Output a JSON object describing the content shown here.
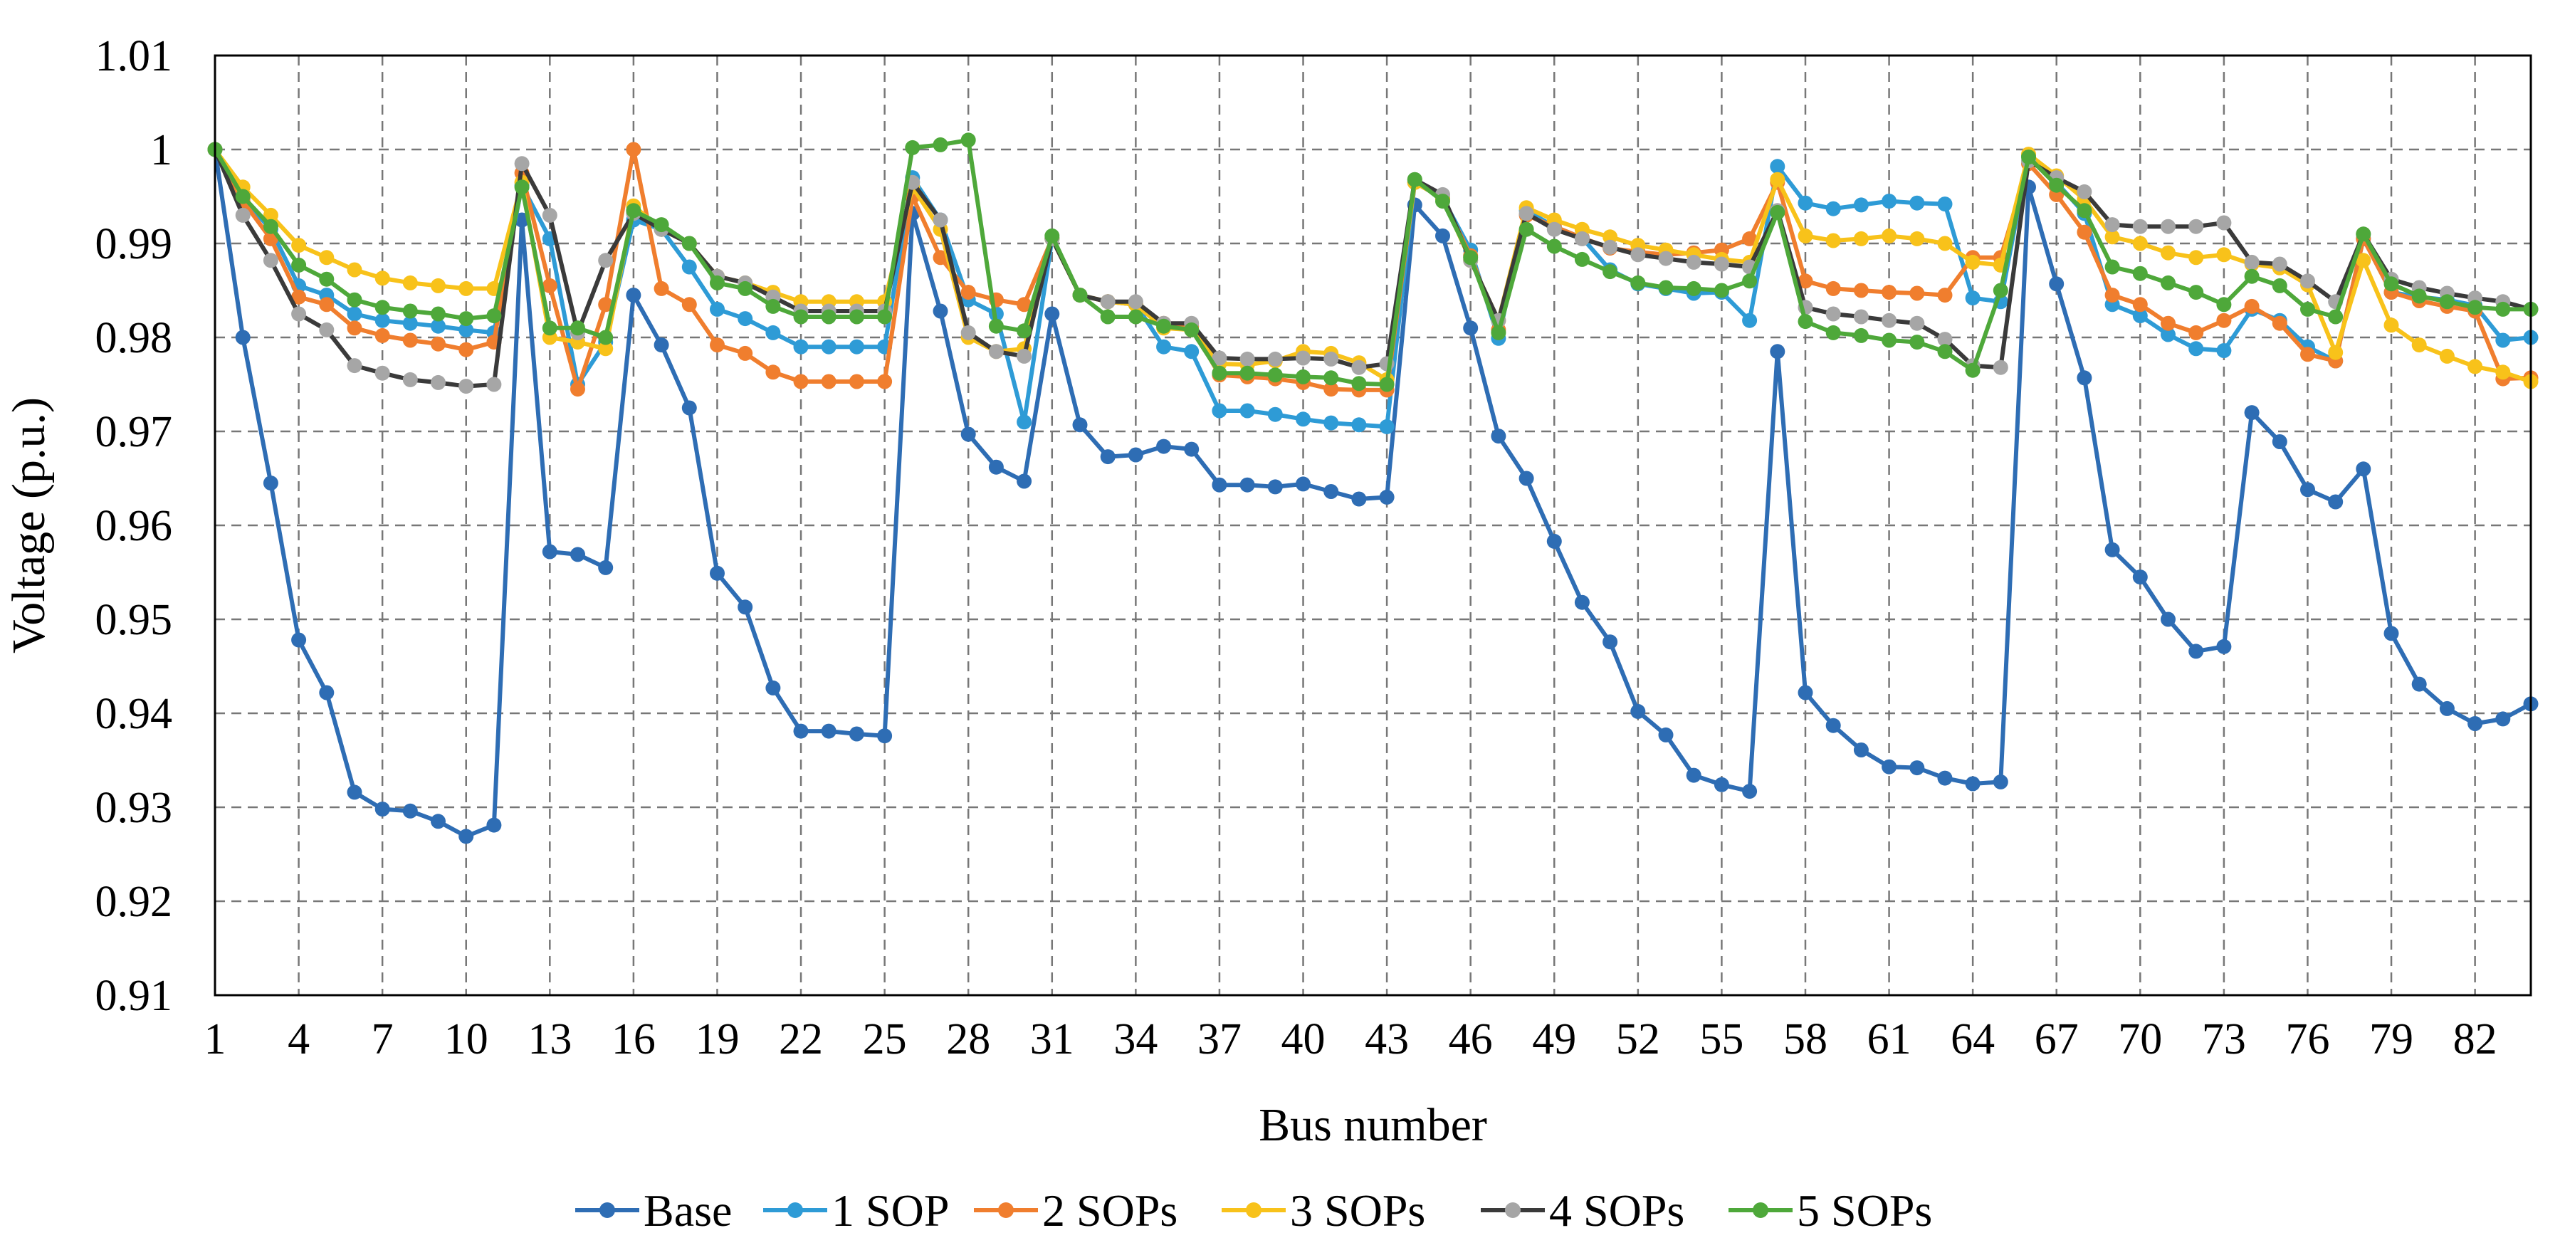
{
  "chart_data": {
    "type": "line",
    "title": "",
    "xlabel": "Bus number",
    "ylabel": "Voltage (p.u.)",
    "xlim": [
      1,
      84
    ],
    "ylim": [
      0.91,
      1.01
    ],
    "grid": true,
    "legend_position": "bottom",
    "x_ticks": [
      1,
      4,
      7,
      10,
      13,
      16,
      19,
      22,
      25,
      28,
      31,
      34,
      37,
      40,
      43,
      46,
      49,
      52,
      55,
      58,
      61,
      64,
      67,
      70,
      73,
      76,
      79,
      82
    ],
    "x_tick_labels": [
      "1",
      "4",
      "7",
      "10",
      "13",
      "16",
      "19",
      "22",
      "25",
      "28",
      "31",
      "34",
      "37",
      "40",
      "43",
      "46",
      "49",
      "52",
      "55",
      "58",
      "61",
      "64",
      "67",
      "70",
      "73",
      "76",
      "79",
      "82"
    ],
    "y_ticks": [
      0.91,
      0.92,
      0.93,
      0.94,
      0.95,
      0.96,
      0.97,
      0.98,
      0.99,
      1.0,
      1.01
    ],
    "y_tick_labels": [
      "0.91",
      "0.92",
      "0.93",
      "0.94",
      "0.95",
      "0.96",
      "0.97",
      "0.98",
      "0.99",
      "1",
      "1.01"
    ],
    "x": [
      1,
      2,
      3,
      4,
      5,
      6,
      7,
      8,
      9,
      10,
      11,
      12,
      13,
      14,
      15,
      16,
      17,
      18,
      19,
      20,
      21,
      22,
      23,
      24,
      25,
      26,
      27,
      28,
      29,
      30,
      31,
      32,
      33,
      34,
      35,
      36,
      37,
      38,
      39,
      40,
      41,
      42,
      43,
      44,
      45,
      46,
      47,
      48,
      49,
      50,
      51,
      52,
      53,
      54,
      55,
      56,
      57,
      58,
      59,
      60,
      61,
      62,
      63,
      64,
      65,
      66,
      67,
      68,
      69,
      70,
      71,
      72,
      73,
      74,
      75,
      76,
      77,
      78,
      79,
      80,
      81,
      82,
      83,
      84
    ],
    "series": [
      {
        "name": "Base",
        "color": "#2e6db4",
        "values": [
          1.0,
          0.98,
          0.9645,
          0.9478,
          0.9422,
          0.9316,
          0.9298,
          0.9296,
          0.9285,
          0.9269,
          0.9281,
          0.9925,
          0.9572,
          0.9569,
          0.9555,
          0.9845,
          0.9792,
          0.9725,
          0.9549,
          0.9513,
          0.9427,
          0.9381,
          0.9381,
          0.9378,
          0.9376,
          0.9932,
          0.9828,
          0.9697,
          0.9662,
          0.9647,
          0.9825,
          0.9707,
          0.9673,
          0.9675,
          0.9684,
          0.9681,
          0.9643,
          0.9643,
          0.9641,
          0.9644,
          0.9636,
          0.9628,
          0.963,
          0.9941,
          0.9908,
          0.981,
          0.9695,
          0.965,
          0.9583,
          0.9518,
          0.9476,
          0.9402,
          0.9377,
          0.9334,
          0.9324,
          0.9317,
          0.9785,
          0.9422,
          0.9387,
          0.9361,
          0.9343,
          0.9342,
          0.9331,
          0.9325,
          0.9327,
          0.996,
          0.9857,
          0.9757,
          0.9574,
          0.9545,
          0.95,
          0.9466,
          0.9471,
          0.972,
          0.9689,
          0.9638,
          0.9625,
          0.966,
          0.9485,
          0.9431,
          0.9405,
          0.9389,
          0.9394,
          0.941
        ]
      },
      {
        "name": "1 SOP",
        "color": "#2e9bd6",
        "values": [
          1.0,
          0.9948,
          0.9915,
          0.9855,
          0.9845,
          0.9825,
          0.9818,
          0.9815,
          0.9812,
          0.9808,
          0.9805,
          0.9962,
          0.9905,
          0.975,
          0.9795,
          0.9925,
          0.9915,
          0.9875,
          0.983,
          0.982,
          0.9805,
          0.979,
          0.979,
          0.979,
          0.979,
          0.997,
          0.9925,
          0.984,
          0.9825,
          0.971,
          0.9905,
          0.9845,
          0.9838,
          0.9835,
          0.979,
          0.9785,
          0.9722,
          0.9722,
          0.9718,
          0.9713,
          0.9709,
          0.9707,
          0.9705,
          0.9965,
          0.9948,
          0.9893,
          0.9799,
          0.9935,
          0.9918,
          0.9906,
          0.9872,
          0.9857,
          0.9852,
          0.9847,
          0.9848,
          0.9818,
          0.9982,
          0.9943,
          0.9937,
          0.9941,
          0.9945,
          0.9943,
          0.9942,
          0.9842,
          0.9838,
          0.9994,
          0.9965,
          0.9932,
          0.9835,
          0.9823,
          0.9803,
          0.9788,
          0.9786,
          0.983,
          0.9818,
          0.979,
          0.9775,
          0.9905,
          0.9848,
          0.9843,
          0.984,
          0.9834,
          0.9797,
          0.98
        ]
      },
      {
        "name": "2 SOPs",
        "color": "#f07e2e",
        "values": [
          1.0,
          0.9945,
          0.9905,
          0.9843,
          0.9835,
          0.981,
          0.9802,
          0.9797,
          0.9793,
          0.9787,
          0.9795,
          0.9975,
          0.9855,
          0.9745,
          0.9835,
          1.0,
          0.9852,
          0.9835,
          0.9792,
          0.9783,
          0.9763,
          0.9753,
          0.9753,
          0.9753,
          0.9753,
          0.995,
          0.9885,
          0.9848,
          0.984,
          0.9835,
          0.9905,
          0.9845,
          0.9838,
          0.9835,
          0.9815,
          0.9812,
          0.976,
          0.9758,
          0.9756,
          0.9752,
          0.9745,
          0.9744,
          0.9744,
          0.9965,
          0.9948,
          0.9887,
          0.9808,
          0.993,
          0.9918,
          0.9906,
          0.9895,
          0.9891,
          0.9888,
          0.989,
          0.9893,
          0.9905,
          0.9965,
          0.986,
          0.9852,
          0.985,
          0.9848,
          0.9847,
          0.9845,
          0.9885,
          0.9885,
          0.9985,
          0.9952,
          0.9912,
          0.9845,
          0.9835,
          0.9815,
          0.9805,
          0.9818,
          0.9833,
          0.9815,
          0.9782,
          0.9775,
          0.9905,
          0.9848,
          0.9839,
          0.9833,
          0.9828,
          0.9756,
          0.9757
        ]
      },
      {
        "name": "3 SOPs",
        "color": "#f8c21a",
        "values": [
          1.0,
          0.996,
          0.993,
          0.9898,
          0.9885,
          0.9872,
          0.9863,
          0.9858,
          0.9855,
          0.9852,
          0.9852,
          0.9965,
          0.98,
          0.9795,
          0.9788,
          0.994,
          0.9915,
          0.99,
          0.9865,
          0.9858,
          0.9848,
          0.9838,
          0.9838,
          0.9838,
          0.9838,
          0.996,
          0.9915,
          0.98,
          0.9785,
          0.9788,
          0.9905,
          0.9845,
          0.9838,
          0.9835,
          0.981,
          0.9808,
          0.9772,
          0.9771,
          0.9775,
          0.9785,
          0.9783,
          0.9773,
          0.9755,
          0.9965,
          0.9948,
          0.9882,
          0.9818,
          0.9938,
          0.9925,
          0.9915,
          0.9907,
          0.9898,
          0.9893,
          0.9888,
          0.9883,
          0.988,
          0.9968,
          0.9908,
          0.9903,
          0.9905,
          0.9908,
          0.9905,
          0.99,
          0.988,
          0.9877,
          0.9995,
          0.9972,
          0.9947,
          0.9907,
          0.99,
          0.989,
          0.9885,
          0.9888,
          0.9878,
          0.9874,
          0.9856,
          0.9784,
          0.9882,
          0.9813,
          0.9792,
          0.978,
          0.9769,
          0.9763,
          0.9753
        ]
      },
      {
        "name": "4 SOPs",
        "color": "#3a3a3a",
        "points_color": "#a6a6a6",
        "values": [
          1.0,
          0.993,
          0.9882,
          0.9825,
          0.9808,
          0.977,
          0.9762,
          0.9755,
          0.9752,
          0.9748,
          0.975,
          0.9985,
          0.993,
          0.9805,
          0.9882,
          0.9932,
          0.9915,
          0.99,
          0.9865,
          0.9858,
          0.9843,
          0.9828,
          0.9828,
          0.9828,
          0.9828,
          0.9965,
          0.9925,
          0.9805,
          0.9785,
          0.978,
          0.9905,
          0.9845,
          0.9838,
          0.9838,
          0.9815,
          0.9815,
          0.9778,
          0.9777,
          0.9777,
          0.9778,
          0.9777,
          0.9768,
          0.9772,
          0.9968,
          0.9952,
          0.9882,
          0.9818,
          0.9932,
          0.9915,
          0.9905,
          0.9896,
          0.9888,
          0.9884,
          0.988,
          0.9878,
          0.9875,
          0.9935,
          0.9832,
          0.9825,
          0.9822,
          0.9818,
          0.9815,
          0.9798,
          0.977,
          0.9768,
          0.9988,
          0.997,
          0.9955,
          0.992,
          0.9918,
          0.9918,
          0.9918,
          0.9922,
          0.988,
          0.9878,
          0.986,
          0.9838,
          0.991,
          0.9862,
          0.9853,
          0.9847,
          0.9842,
          0.9838,
          0.983
        ]
      },
      {
        "name": "5 SOPs",
        "color": "#4ea83a",
        "values": [
          1.0,
          0.995,
          0.9918,
          0.9877,
          0.9862,
          0.984,
          0.9832,
          0.9828,
          0.9825,
          0.982,
          0.9823,
          0.996,
          0.981,
          0.981,
          0.98,
          0.9935,
          0.992,
          0.99,
          0.9858,
          0.9852,
          0.9833,
          0.9822,
          0.9822,
          0.9822,
          0.9822,
          1.0002,
          1.0005,
          1.001,
          0.9812,
          0.9807,
          0.9908,
          0.9845,
          0.9822,
          0.9822,
          0.9812,
          0.9808,
          0.9762,
          0.9762,
          0.976,
          0.9758,
          0.9757,
          0.9751,
          0.975,
          0.9968,
          0.9945,
          0.9885,
          0.9805,
          0.9915,
          0.9897,
          0.9883,
          0.987,
          0.9858,
          0.9853,
          0.9852,
          0.985,
          0.986,
          0.9933,
          0.9817,
          0.9805,
          0.9802,
          0.9797,
          0.9795,
          0.9785,
          0.9765,
          0.985,
          0.9992,
          0.9962,
          0.9935,
          0.9875,
          0.9868,
          0.9858,
          0.9848,
          0.9835,
          0.9865,
          0.9855,
          0.983,
          0.9822,
          0.991,
          0.9857,
          0.9844,
          0.9838,
          0.9832,
          0.983,
          0.983
        ]
      }
    ]
  }
}
